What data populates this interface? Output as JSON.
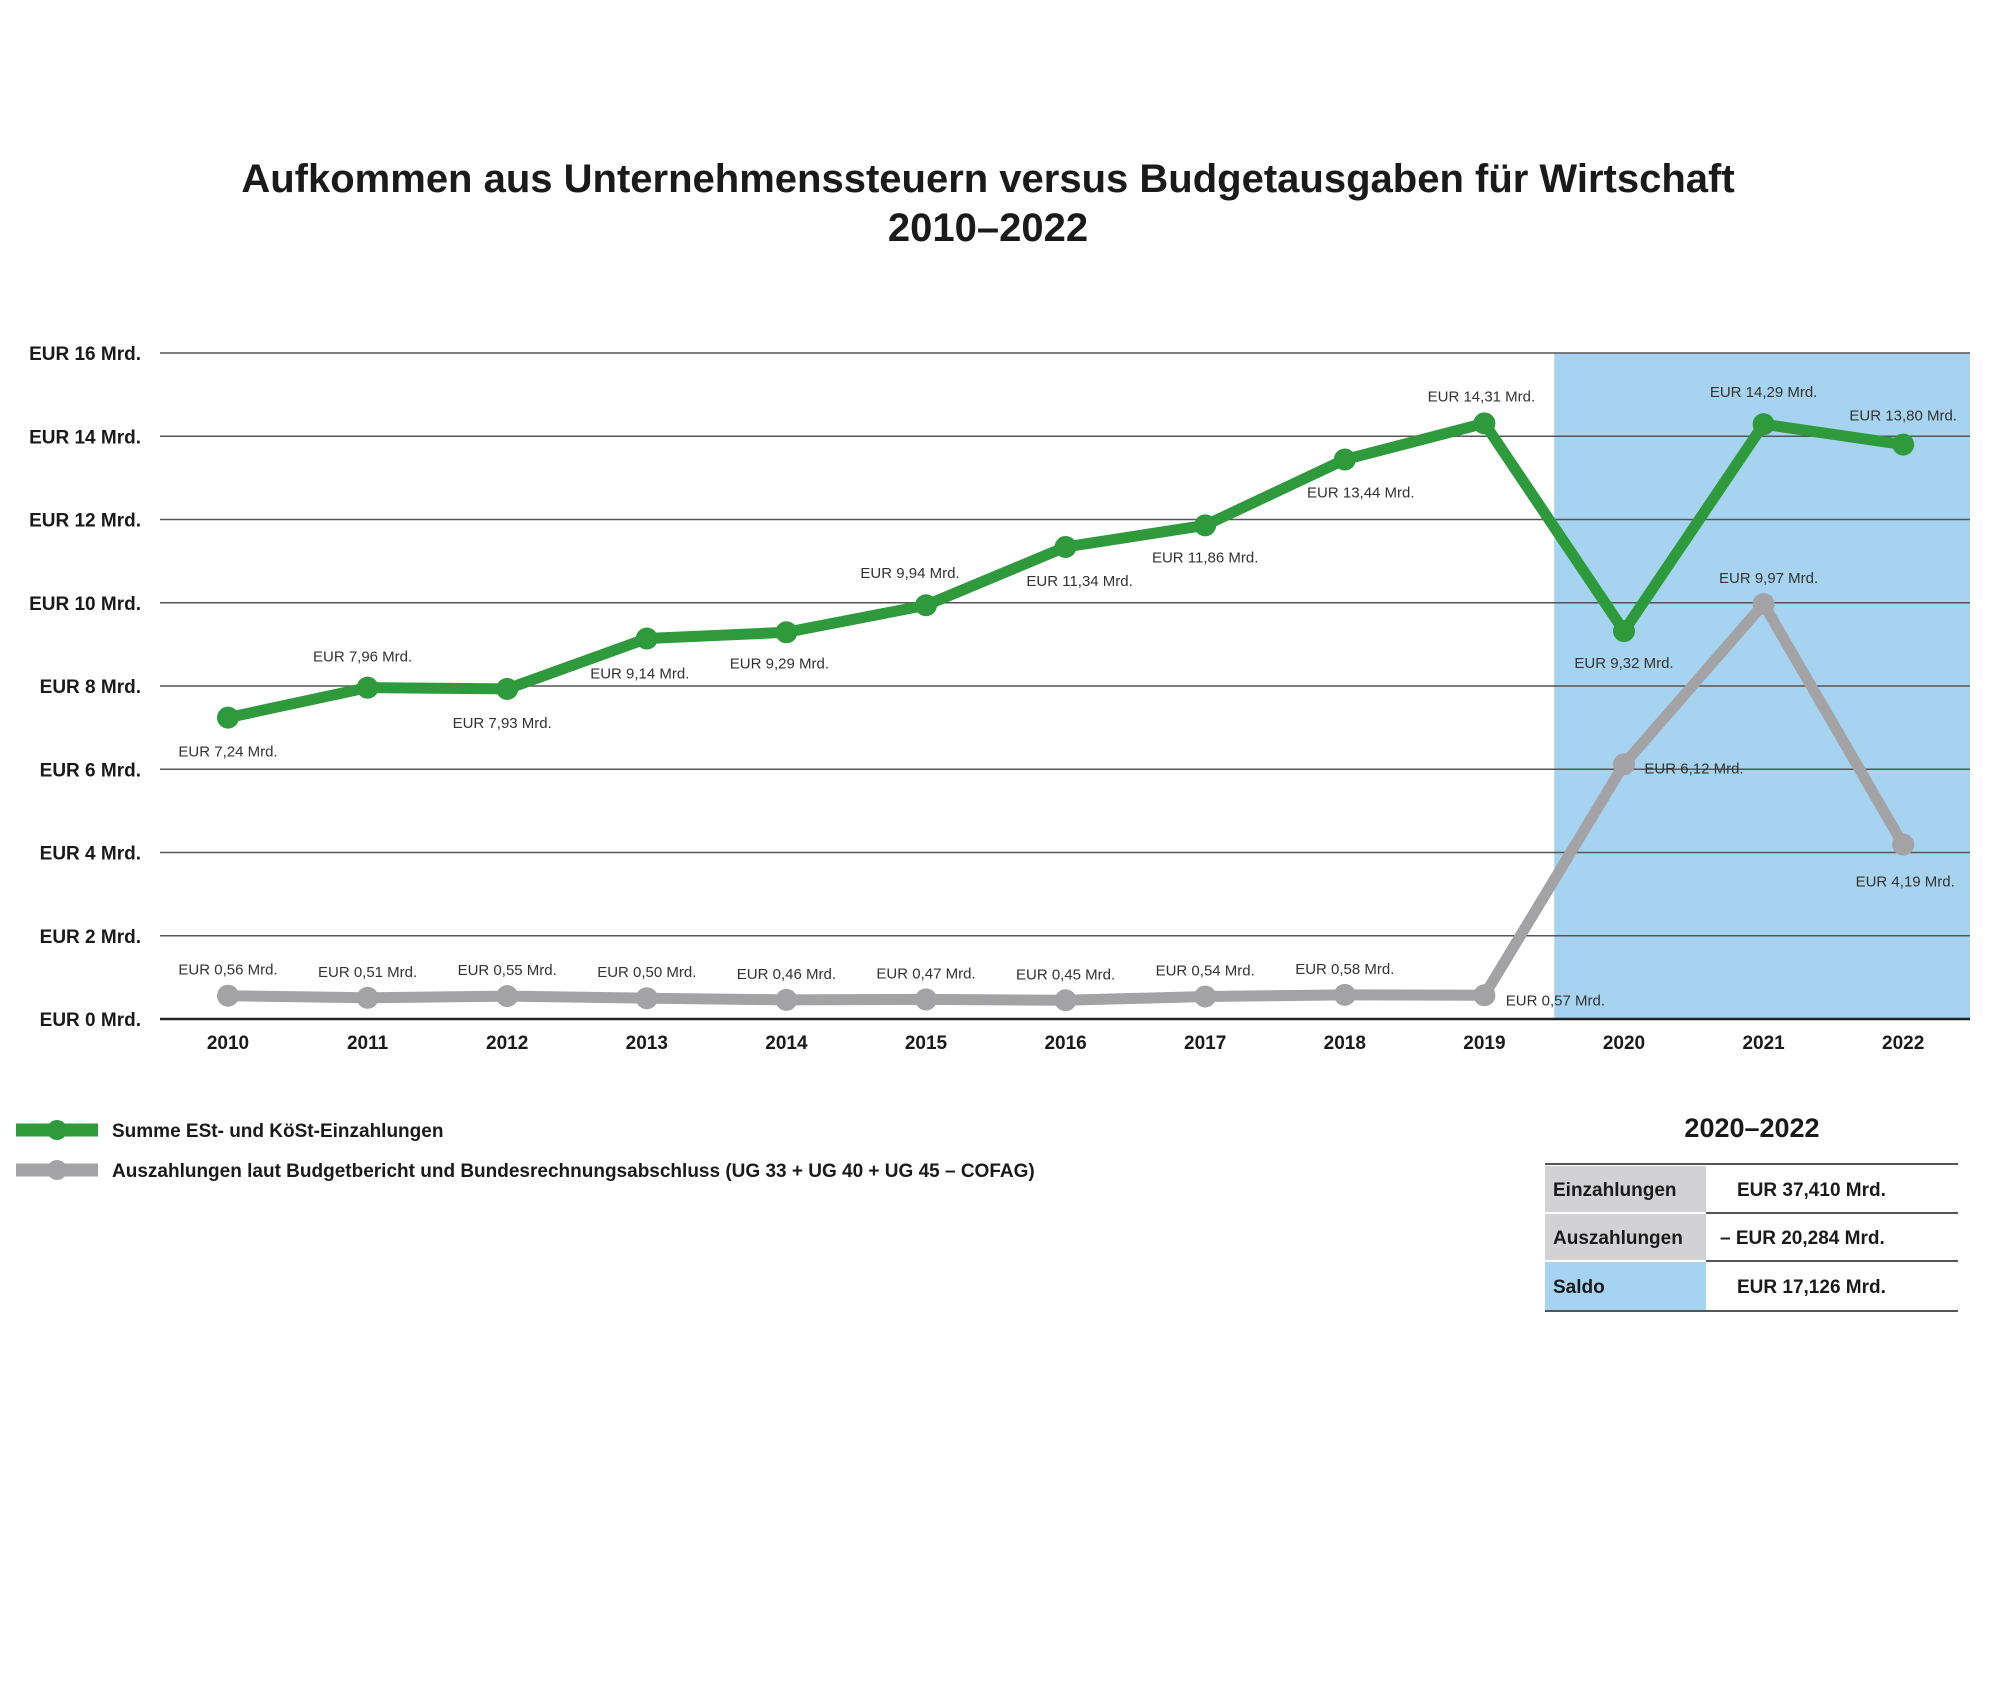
{
  "chart_data": {
    "type": "line",
    "title": "Aufkommen aus Unternehmenssteuern versus Budgetausgaben für Wirtschaft",
    "subtitle": "2010–2022",
    "categories": [
      "2010",
      "2011",
      "2012",
      "2013",
      "2014",
      "2015",
      "2016",
      "2017",
      "2018",
      "2019",
      "2020",
      "2021",
      "2022"
    ],
    "y_tick_labels": [
      "EUR 0 Mrd.",
      "EUR 2 Mrd.",
      "EUR 4 Mrd.",
      "EUR 6 Mrd.",
      "EUR 8 Mrd.",
      "EUR 10 Mrd.",
      "EUR 12 Mrd.",
      "EUR 14 Mrd.",
      "EUR 16 Mrd."
    ],
    "ylim": [
      0,
      16
    ],
    "y_tick_step": 2,
    "grid": true,
    "highlight_period": [
      "2020",
      "2022"
    ],
    "highlight_color": "#a6d3ef",
    "legend_position": "bottom-left",
    "series": [
      {
        "name": "Summe ESt- und KöSt-Einzahlungen",
        "color": "#2e9a3c",
        "values": [
          7.24,
          7.96,
          7.93,
          9.14,
          9.29,
          9.94,
          11.34,
          11.86,
          13.44,
          14.31,
          9.32,
          14.29,
          13.8
        ],
        "labels": [
          "EUR 7,24 Mrd.",
          "EUR 7,96 Mrd.",
          "EUR 7,93 Mrd.",
          "EUR 9,14 Mrd.",
          "EUR 9,29 Mrd.",
          "EUR 9,94 Mrd.",
          "EUR 11,34 Mrd.",
          "EUR 11,86 Mrd.",
          "EUR 13,44 Mrd.",
          "EUR 14,31 Mrd.",
          "EUR 9,32 Mrd.",
          "EUR 14,29 Mrd.",
          "EUR 13,80 Mrd."
        ]
      },
      {
        "name": "Auszahlungen laut Budgetbericht und Bundesrechnungsabschluss (UG 33 + UG 40 + UG 45 – COFAG)",
        "color": "#a3a3a6",
        "values": [
          0.56,
          0.51,
          0.55,
          0.5,
          0.46,
          0.47,
          0.45,
          0.54,
          0.58,
          0.57,
          6.12,
          9.97,
          4.19
        ],
        "labels": [
          "EUR 0,56 Mrd.",
          "EUR 0,51 Mrd.",
          "EUR 0,55 Mrd.",
          "EUR 0,50 Mrd.",
          "EUR 0,46 Mrd.",
          "EUR 0,47 Mrd.",
          "EUR 0,45 Mrd.",
          "EUR 0,54 Mrd.",
          "EUR 0,58 Mrd.",
          "EUR 0,57 Mrd.",
          "EUR 6,12 Mrd.",
          "EUR 9,97 Mrd.",
          "EUR 4,19 Mrd."
        ]
      }
    ],
    "summary_table": {
      "title": "2020–2022",
      "rows": [
        {
          "label": "Einzahlungen",
          "value": "EUR 37,410 Mrd."
        },
        {
          "label": "Auszahlungen",
          "value": "– EUR 20,284 Mrd."
        },
        {
          "label": "Saldo",
          "value": "EUR 17,126 Mrd."
        }
      ]
    }
  }
}
